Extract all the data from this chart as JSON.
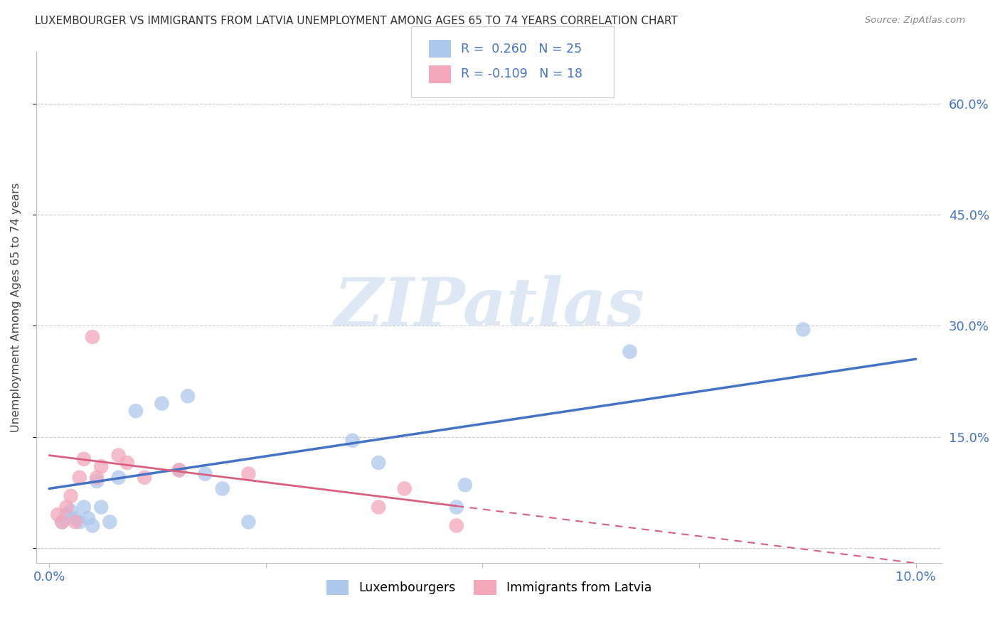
{
  "title": "LUXEMBOURGER VS IMMIGRANTS FROM LATVIA UNEMPLOYMENT AMONG AGES 65 TO 74 YEARS CORRELATION CHART",
  "source": "Source: ZipAtlas.com",
  "ylabel": "Unemployment Among Ages 65 to 74 years",
  "xlim": [
    -0.15,
    10.3
  ],
  "ylim": [
    -2.0,
    67.0
  ],
  "x_ticks": [
    0.0,
    2.5,
    5.0,
    7.5,
    10.0
  ],
  "x_tick_labels": [
    "0.0%",
    "",
    "",
    "",
    "10.0%"
  ],
  "y_ticks": [
    0.0,
    15.0,
    30.0,
    45.0,
    60.0
  ],
  "y_tick_labels": [
    "",
    "15.0%",
    "30.0%",
    "45.0%",
    "60.0%"
  ],
  "blue_color": "#adc8eb",
  "blue_line_color": "#4472c4",
  "pink_color": "#f2a7bb",
  "pink_line_color": "#d95f7f",
  "blue_scatter_x": [
    0.15,
    0.2,
    0.25,
    0.3,
    0.35,
    0.4,
    0.45,
    0.5,
    0.55,
    0.6,
    0.7,
    0.8,
    1.0,
    1.3,
    1.5,
    1.6,
    1.8,
    2.0,
    2.3,
    3.5,
    3.8,
    4.7,
    4.8,
    6.7,
    8.7
  ],
  "blue_scatter_y": [
    3.5,
    4.5,
    5.0,
    4.0,
    3.5,
    5.5,
    4.0,
    3.0,
    9.0,
    5.5,
    3.5,
    9.5,
    18.5,
    19.5,
    10.5,
    20.5,
    10.0,
    8.0,
    3.5,
    14.5,
    11.5,
    5.5,
    8.5,
    26.5,
    29.5
  ],
  "pink_scatter_x": [
    0.1,
    0.15,
    0.2,
    0.25,
    0.3,
    0.35,
    0.4,
    0.55,
    0.6,
    0.8,
    0.9,
    1.1,
    1.5,
    2.3,
    3.8,
    4.1,
    4.7,
    0.5
  ],
  "pink_scatter_y": [
    4.5,
    3.5,
    5.5,
    7.0,
    3.5,
    9.5,
    12.0,
    9.5,
    11.0,
    12.5,
    11.5,
    9.5,
    10.5,
    10.0,
    5.5,
    8.0,
    3.0,
    28.5
  ],
  "blue_trend_x0": 0.0,
  "blue_trend_y0": 8.0,
  "blue_trend_x1": 10.0,
  "blue_trend_y1": 25.5,
  "pink_trend_x0": 0.0,
  "pink_trend_y0": 12.5,
  "pink_trend_x1_solid": 4.7,
  "pink_trend_x1": 10.3,
  "pink_trend_y1": -2.5,
  "watermark_text": "ZIPatlas",
  "watermark_color": "#dde8f4",
  "background_color": "#ffffff",
  "grid_color": "#cccccc",
  "bottom_legend_labels": [
    "Luxembourgers",
    "Immigrants from Latvia"
  ]
}
